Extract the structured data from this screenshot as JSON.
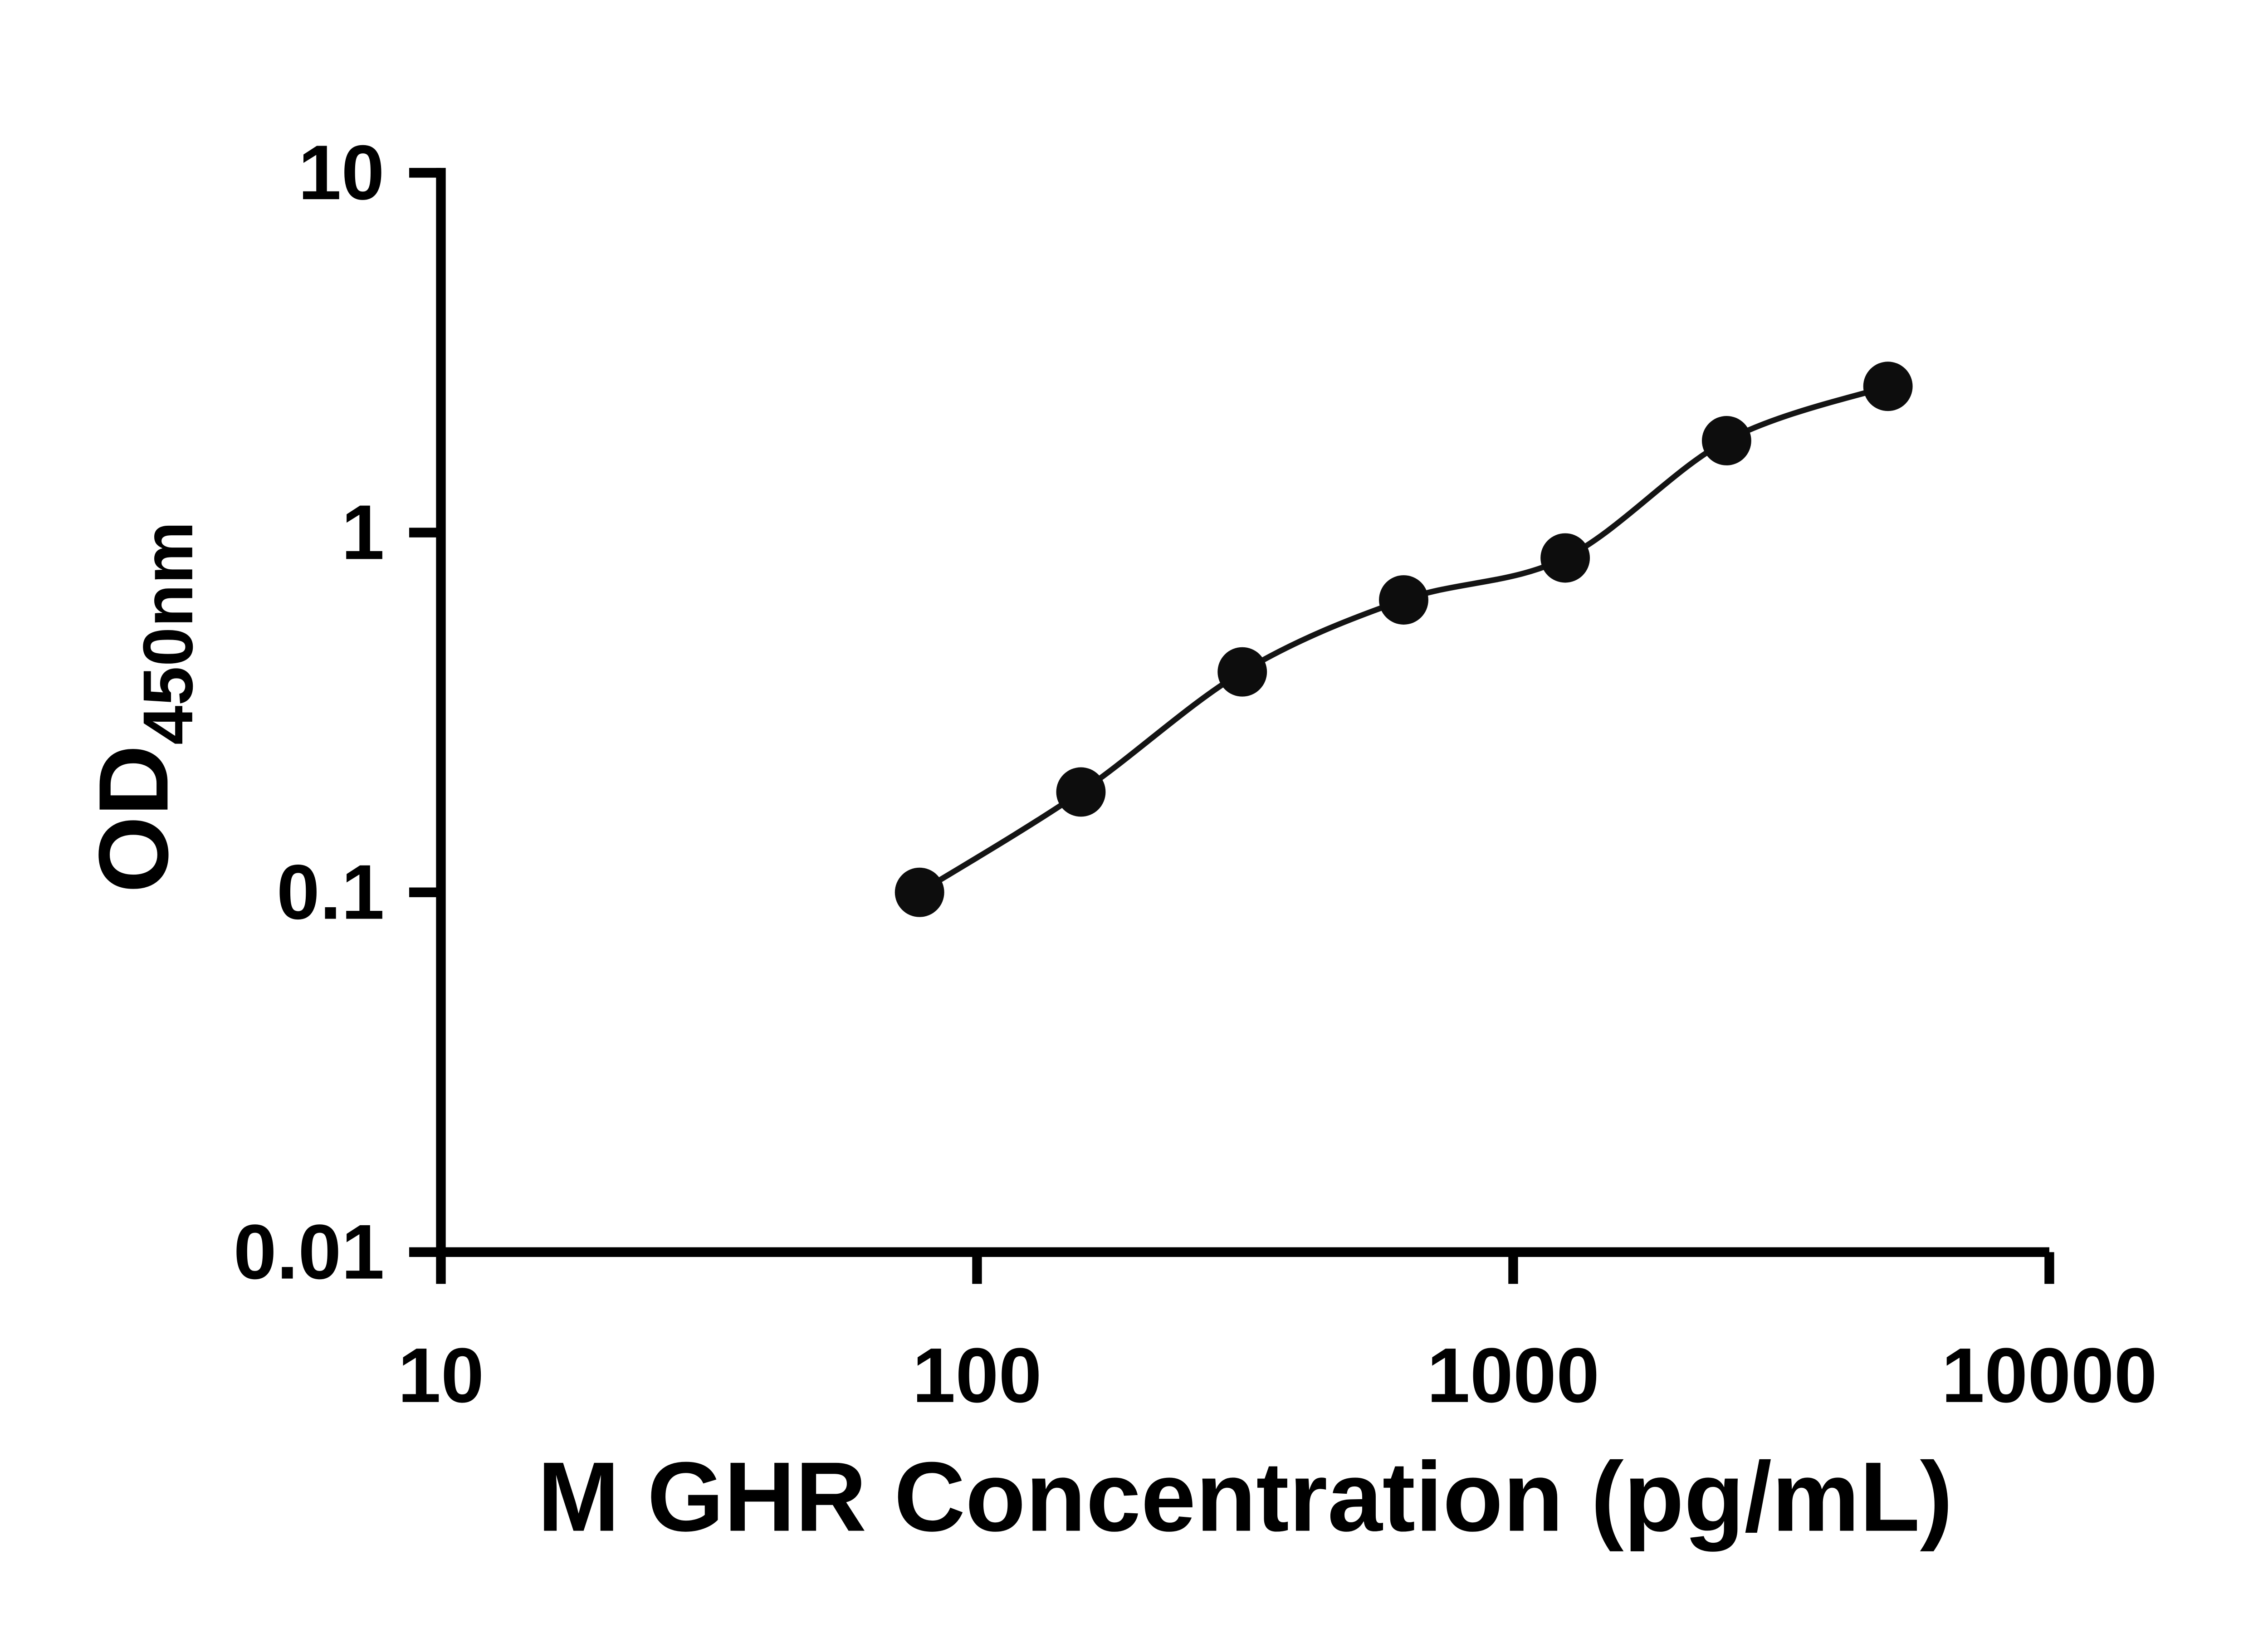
{
  "chart_data": {
    "type": "scatter",
    "x": [
      78.125,
      156.25,
      312.5,
      625,
      1250,
      2500,
      5000
    ],
    "y": [
      0.1,
      0.19,
      0.41,
      0.65,
      0.85,
      1.8,
      2.55
    ],
    "curve": "smooth fit line through standard points",
    "xlabel": "M GHR Concentration (pg/mL)",
    "ylabel_main": "OD",
    "ylabel_sub": "450nm",
    "x_scale": "log",
    "y_scale": "log",
    "xlim": [
      10,
      10000
    ],
    "ylim": [
      0.01,
      10
    ],
    "x_ticks": [
      {
        "value": 10,
        "label": "10"
      },
      {
        "value": 100,
        "label": "100"
      },
      {
        "value": 1000,
        "label": "1000"
      },
      {
        "value": 10000,
        "label": "10000"
      }
    ],
    "y_ticks": [
      {
        "value": 10,
        "label": "10"
      },
      {
        "value": 1,
        "label": "1"
      },
      {
        "value": 0.1,
        "label": "0.1"
      },
      {
        "value": 0.01,
        "label": "0.01"
      }
    ],
    "grid": false,
    "legend": false,
    "marker_color": "#0d0d0d",
    "line_color": "#141414",
    "axis_color": "#000000",
    "background_color": "#ffffff"
  }
}
